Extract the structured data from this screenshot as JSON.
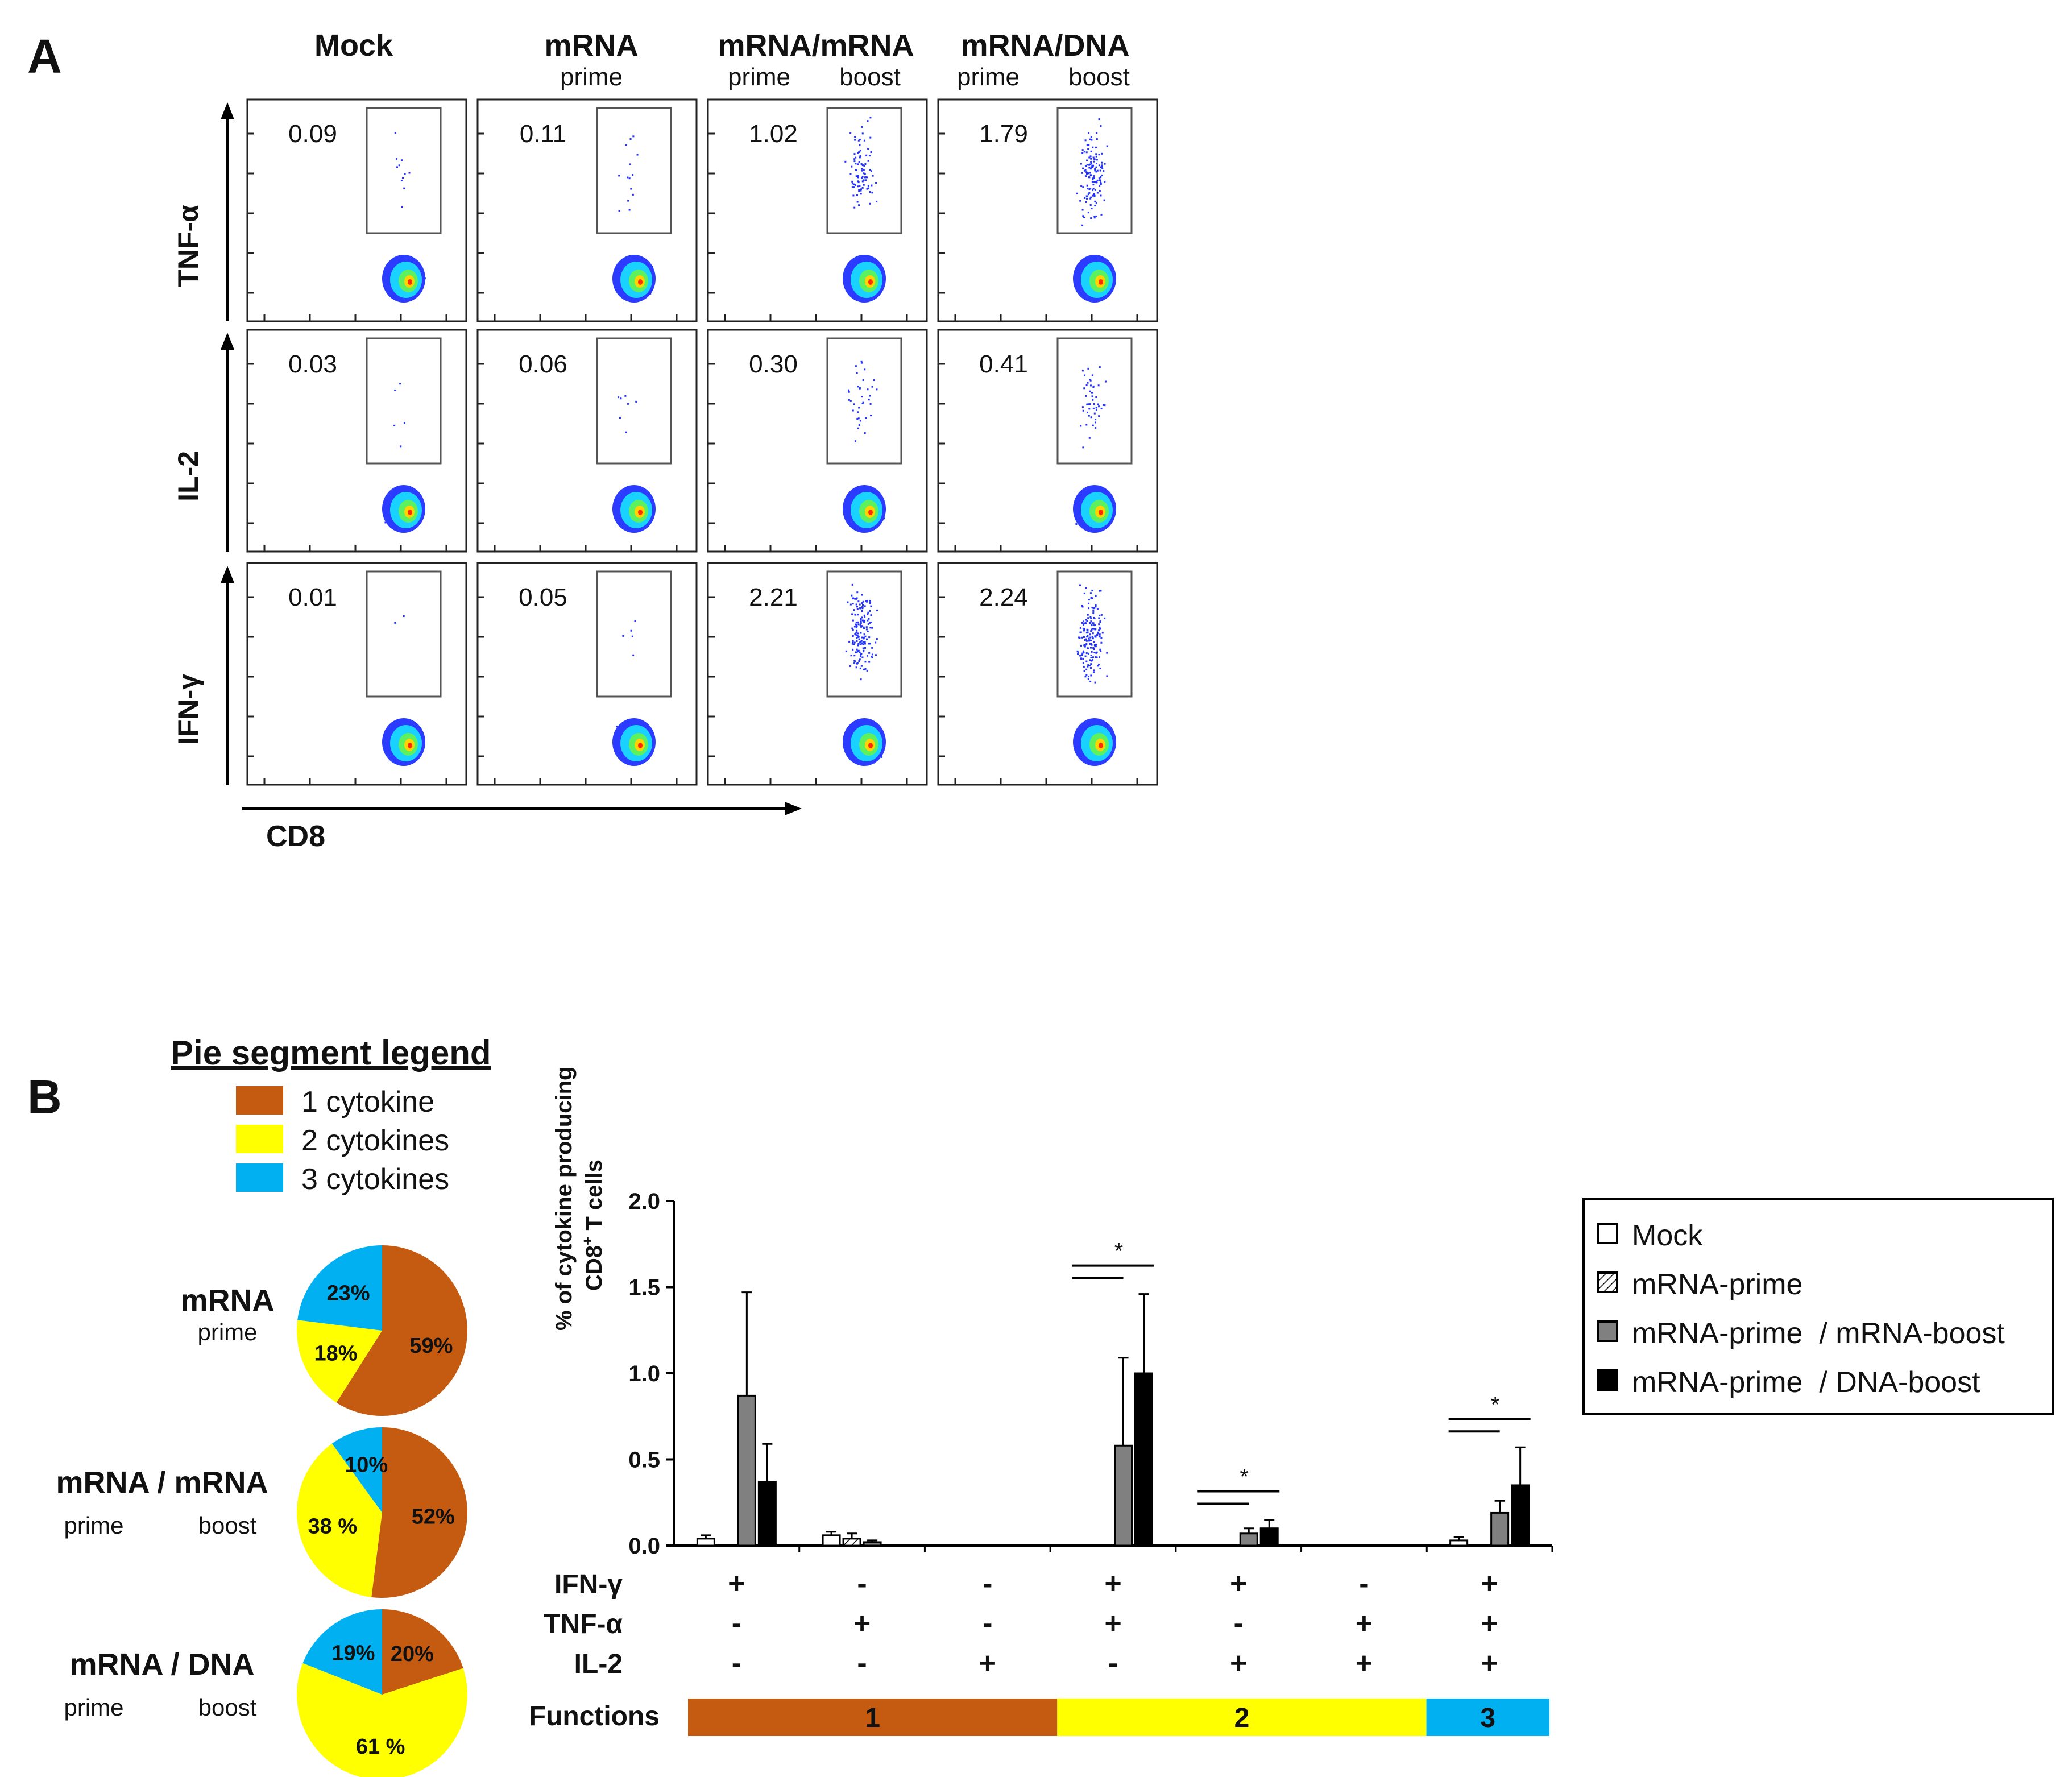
{
  "panels": {
    "a_label": "A",
    "b_label": "B"
  },
  "colors": {
    "one_cytokine": "#C55A11",
    "two_cytokines": "#FFFF00",
    "three_cytokines": "#00B0F0",
    "mock": "#FFFFFF",
    "mrna_mrna": "#808080",
    "mrna_dna": "#000000",
    "gate": "#555555"
  },
  "flow": {
    "columns": [
      {
        "title": "Mock",
        "subs": []
      },
      {
        "title": "mRNA",
        "subs": [
          "prime"
        ]
      },
      {
        "title": "mRNA/mRNA",
        "subs": [
          "prime",
          "boost"
        ]
      },
      {
        "title": "mRNA/DNA",
        "subs": [
          "prime",
          "boost"
        ]
      }
    ],
    "rows": [
      {
        "label": "TNF-α",
        "values": [
          "0.09",
          "0.11",
          "1.02",
          "1.79"
        ]
      },
      {
        "label": "IL-2",
        "values": [
          "0.03",
          "0.06",
          "0.30",
          "0.41"
        ]
      },
      {
        "label": "IFN-γ",
        "values": [
          "0.01",
          "0.05",
          "2.21",
          "2.24"
        ]
      }
    ],
    "x_axis_label": "CD8"
  },
  "pie_legend": {
    "title": "Pie segment legend",
    "items": [
      "1 cytokine",
      "2 cytokines",
      "3 cytokines"
    ]
  },
  "pies": [
    {
      "title": "mRNA",
      "subs": [
        "prime"
      ],
      "slices": [
        {
          "label": "59%",
          "value": 59,
          "cat": "one_cytokine"
        },
        {
          "label": "18%",
          "value": 18,
          "cat": "two_cytokines"
        },
        {
          "label": "23%",
          "value": 23,
          "cat": "three_cytokines"
        }
      ]
    },
    {
      "title": "mRNA / mRNA",
      "subs": [
        "prime",
        "boost"
      ],
      "slices": [
        {
          "label": "52%",
          "value": 52,
          "cat": "one_cytokine"
        },
        {
          "label": "38 %",
          "value": 38,
          "cat": "two_cytokines"
        },
        {
          "label": "10%",
          "value": 10,
          "cat": "three_cytokines"
        }
      ]
    },
    {
      "title": "mRNA / DNA",
      "subs": [
        "prime",
        "boost"
      ],
      "slices": [
        {
          "label": "20%",
          "value": 20,
          "cat": "one_cytokine"
        },
        {
          "label": "61 %",
          "value": 61,
          "cat": "two_cytokines"
        },
        {
          "label": "19%",
          "value": 19,
          "cat": "three_cytokines"
        }
      ]
    }
  ],
  "chart_data": {
    "type": "bar",
    "ylabel_line1": "% of cytokine producing",
    "ylabel_line2": "CD8",
    "ylabel_sup": "+",
    "ylabel_tail": " T cells",
    "ylim": [
      0,
      2.0
    ],
    "yticks": [
      "0.0",
      "0.5",
      "1.0",
      "1.5",
      "2.0"
    ],
    "legend": [
      "Mock",
      "mRNA-prime",
      "mRNA-prime  / mRNA-boost",
      "mRNA-prime  / DNA-boost"
    ],
    "series": [
      {
        "name": "Mock",
        "values": [
          0.04,
          0.06,
          0.0,
          0.0,
          0.0,
          0.0,
          0.03
        ],
        "errors": [
          0.02,
          0.02,
          0.0,
          0.0,
          0.0,
          0.0,
          0.02
        ]
      },
      {
        "name": "mRNA-prime",
        "values": [
          0.0,
          0.04,
          0.0,
          0.0,
          0.0,
          0.0,
          0.0
        ],
        "errors": [
          0.0,
          0.03,
          0.0,
          0.0,
          0.0,
          0.0,
          0.0
        ]
      },
      {
        "name": "mRNA-prime / mRNA-boost",
        "values": [
          0.87,
          0.02,
          0.0,
          0.58,
          0.07,
          0.0,
          0.19
        ],
        "errors": [
          0.6,
          0.01,
          0.0,
          0.51,
          0.03,
          0.0,
          0.07
        ]
      },
      {
        "name": "mRNA-prime / DNA-boost",
        "values": [
          0.37,
          0.0,
          0.0,
          1.0,
          0.1,
          0.0,
          0.35
        ],
        "errors": [
          0.22,
          0.0,
          0.0,
          0.46,
          0.05,
          0.0,
          0.22
        ]
      }
    ],
    "functions_label": "Functions",
    "marker_rows": [
      {
        "label": "IFN-γ",
        "marks": [
          "+",
          "-",
          "-",
          "+",
          "+",
          "-",
          "+"
        ]
      },
      {
        "label": "TNF-α",
        "marks": [
          "-",
          "+",
          "-",
          "+",
          "-",
          "+",
          "+"
        ]
      },
      {
        "label": "IL-2",
        "marks": [
          "-",
          "-",
          "+",
          "-",
          "+",
          "+",
          "+"
        ]
      }
    ],
    "function_groups": [
      {
        "label": "1",
        "count": 3,
        "cat": "one_cytokine"
      },
      {
        "label": "2",
        "count": 3,
        "cat": "two_cytokines"
      },
      {
        "label": "3",
        "count": 1,
        "cat": "three_cytokines"
      }
    ],
    "significance": [
      {
        "group": 3,
        "label": "*"
      },
      {
        "group": 4,
        "label": "*"
      },
      {
        "group": 6,
        "label": "*"
      }
    ]
  }
}
